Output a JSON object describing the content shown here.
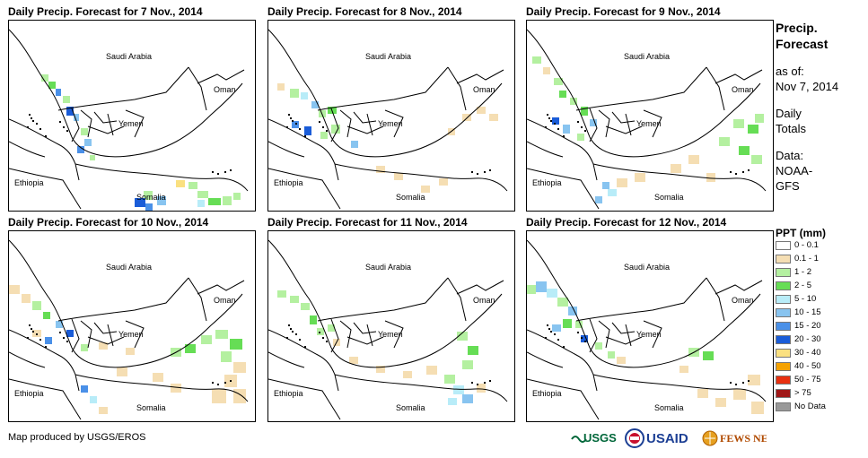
{
  "panels": [
    {
      "title": "Daily Precip. Forecast for 7 Nov., 2014"
    },
    {
      "title": "Daily Precip. Forecast for 8 Nov., 2014"
    },
    {
      "title": "Daily Precip. Forecast for 9 Nov., 2014"
    },
    {
      "title": "Daily Precip. Forecast for 10 Nov., 2014"
    },
    {
      "title": "Daily Precip. Forecast for 11 Nov., 2014"
    },
    {
      "title": "Daily Precip. Forecast for 12 Nov., 2014"
    }
  ],
  "map_labels": {
    "saudi": "Saudi Arabia",
    "oman": "Oman",
    "yemen": "Yemen",
    "ethiopia": "Ethiopia",
    "somalia": "Somalia"
  },
  "sidebar": {
    "title_line1": "Precip.",
    "title_line2": "Forecast",
    "asof_line1": "as of:",
    "asof_line2": "Nov 7, 2014",
    "totals_line1": "Daily",
    "totals_line2": "Totals",
    "data_line1": "Data:",
    "data_line2": "NOAA-",
    "data_line3": "GFS"
  },
  "legend": {
    "title": "PPT (mm)",
    "items": [
      {
        "label": "0 - 0.1",
        "color": "#ffffff"
      },
      {
        "label": "0.1 - 1",
        "color": "#f5deb3"
      },
      {
        "label": "1 - 2",
        "color": "#b4f0a0"
      },
      {
        "label": "2 - 5",
        "color": "#66dd55"
      },
      {
        "label": "5 - 10",
        "color": "#b8ecf8"
      },
      {
        "label": "10 - 15",
        "color": "#88c4f0"
      },
      {
        "label": "15 - 20",
        "color": "#4a90e8"
      },
      {
        "label": "20 - 30",
        "color": "#1a5cd8"
      },
      {
        "label": "30 - 40",
        "color": "#fae080"
      },
      {
        "label": "40 - 50",
        "color": "#f5a200"
      },
      {
        "label": "50 - 75",
        "color": "#e83010"
      },
      {
        "label": "> 75",
        "color": "#a01818"
      },
      {
        "label": "No Data",
        "color": "#999999"
      }
    ]
  },
  "footer": {
    "credit": "Map produced by USGS/EROS",
    "logo_usgs": "USGS",
    "logo_usaid": "USAID",
    "logo_fews": "FEWS NET"
  }
}
